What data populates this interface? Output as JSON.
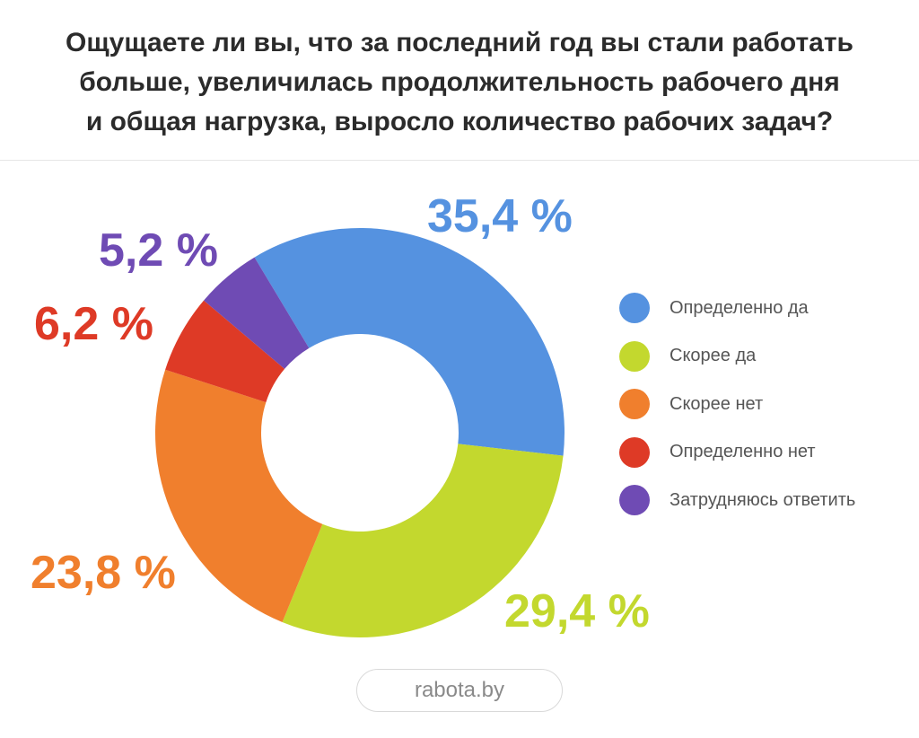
{
  "title_lines": [
    "Ощущаете ли вы, что за последний год вы стали работать",
    "больше, увеличилась продолжительность рабочего дня",
    "и общая нагрузка, выросло количество рабочих задач?"
  ],
  "source": "rabota.by",
  "chart_data": {
    "type": "pie",
    "donut": true,
    "title": "Ощущаете ли вы, что за последний год вы стали работать больше, увеличилась продолжительность рабочего дня и общая нагрузка, выросло количество рабочих задач?",
    "categories": [
      "Определенно да",
      "Скорее да",
      "Скорее нет",
      "Определенно нет",
      "Затрудняюсь ответить"
    ],
    "values": [
      35.4,
      29.4,
      23.8,
      6.2,
      5.2
    ],
    "labels": [
      "35,4 %",
      "29,4 %",
      "23,8 %",
      "6,2 %",
      "5,2 %"
    ],
    "colors": [
      "#5592e0",
      "#c3d82e",
      "#f07f2d",
      "#de3a26",
      "#6f4bb4"
    ],
    "legend_position": "right"
  }
}
